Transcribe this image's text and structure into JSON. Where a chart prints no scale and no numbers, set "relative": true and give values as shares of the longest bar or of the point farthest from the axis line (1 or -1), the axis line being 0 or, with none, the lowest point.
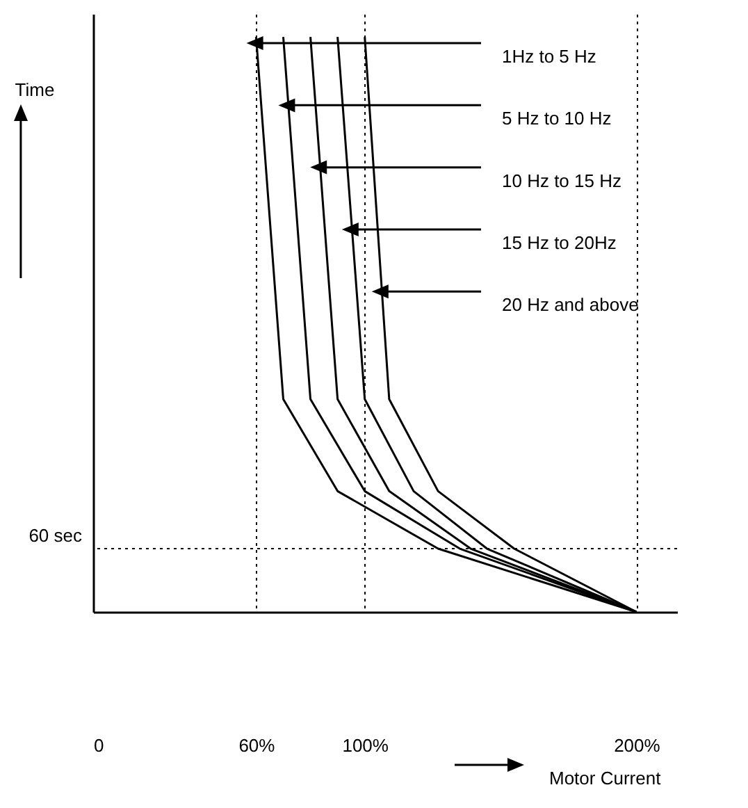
{
  "chart_data": {
    "type": "line",
    "relative": true,
    "ylabel": "Time",
    "xlabel": "Motor Current",
    "xlim": [
      0,
      215
    ],
    "xticks": [
      0,
      {
        "value": 60,
        "label": "60%"
      },
      {
        "value": 100,
        "label": "100%"
      },
      {
        "value": 200,
        "label": "200%"
      }
    ],
    "grid": "x",
    "ref_lines": [
      {
        "axis": "y",
        "value": 0.11,
        "label": "60 sec",
        "line_style": "dotted"
      }
    ],
    "annotations": [
      "1Hz to 5 Hz",
      "5 Hz to 10 Hz",
      "10 Hz to 15 Hz",
      "15 Hz to 20Hz",
      "20 Hz and above"
    ],
    "series": [
      {
        "color": "#000000",
        "x": [
          60,
          70,
          90,
          127,
          200
        ],
        "values": [
          1,
          0.37,
          0.21,
          0.11,
          0
        ]
      },
      {
        "color": "#000000",
        "x": [
          70,
          80,
          100,
          135,
          200
        ],
        "values": [
          1,
          0.37,
          0.21,
          0.11,
          0
        ]
      },
      {
        "color": "#000000",
        "x": [
          80,
          90,
          109,
          139,
          200
        ],
        "values": [
          1,
          0.37,
          0.21,
          0.11,
          0
        ]
      },
      {
        "color": "#000000",
        "x": [
          90,
          100,
          118,
          145,
          200
        ],
        "values": [
          1,
          0.37,
          0.21,
          0.11,
          0
        ]
      },
      {
        "color": "#000000",
        "x": [
          100,
          109,
          127,
          155,
          200
        ],
        "values": [
          1,
          0.37,
          0.21,
          0.11,
          0
        ]
      }
    ]
  }
}
